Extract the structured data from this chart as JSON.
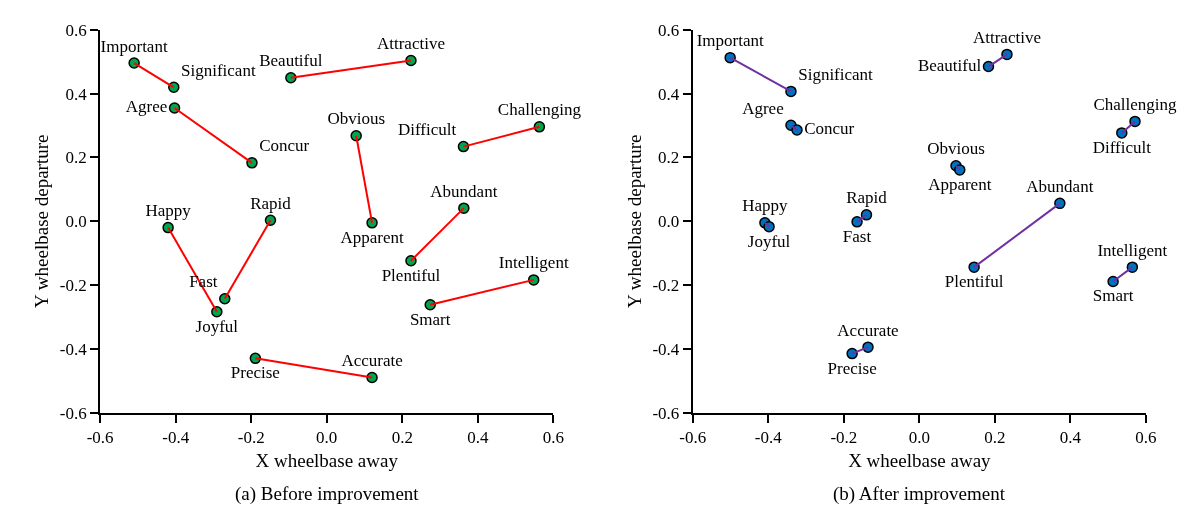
{
  "chart_data": [
    {
      "type": "scatter",
      "title": "(a) Before improvement",
      "xlabel": "X wheelbase away",
      "ylabel": "Y wheelbase departure",
      "xlim": [
        -0.6,
        0.6
      ],
      "ylim": [
        -0.6,
        0.6
      ],
      "xticks": [
        -0.6,
        -0.4,
        -0.2,
        {
          "value": 0,
          "label": "0.0"
        },
        0.2,
        0.4,
        0.6
      ],
      "yticks": [
        -0.6,
        -0.4,
        -0.2,
        {
          "value": 0,
          "label": "0.0"
        },
        0.2,
        0.4,
        0.6
      ],
      "marker": "circle",
      "line_style": "solid",
      "series": [
        {
          "type": "line",
          "color": "#ff0000",
          "colors": [
            "#00a550",
            "#00a550"
          ],
          "x": [
            -0.51,
            -0.405
          ],
          "values": [
            0.496,
            0.42
          ],
          "value_labels": [
            "Important",
            "Significant"
          ]
        },
        {
          "type": "line",
          "color": "#ff0000",
          "colors": [
            "#00a550",
            "#00a550"
          ],
          "x": [
            -0.095,
            0.223
          ],
          "values": [
            0.45,
            0.504
          ],
          "value_labels": [
            "Beautiful",
            "Attractive"
          ]
        },
        {
          "type": "line",
          "color": "#ff0000",
          "colors": [
            "#00a550",
            "#00a550"
          ],
          "x": [
            -0.403,
            -0.198
          ],
          "values": [
            0.355,
            0.183
          ],
          "value_labels": [
            "Agree",
            "Concur"
          ]
        },
        {
          "type": "line",
          "color": "#ff0000",
          "colors": [
            "#00a550",
            "#00a550"
          ],
          "x": [
            0.078,
            0.12
          ],
          "values": [
            0.268,
            -0.005
          ],
          "value_labels": [
            "Obvious",
            "Apparent"
          ]
        },
        {
          "type": "line",
          "color": "#ff0000",
          "colors": [
            "#00a550",
            "#00a550"
          ],
          "x": [
            0.362,
            0.563
          ],
          "values": [
            0.234,
            0.296
          ],
          "value_labels": [
            "Difficult",
            "Challenging"
          ]
        },
        {
          "type": "line",
          "color": "#ff0000",
          "colors": [
            "#00a550",
            "#00a550"
          ],
          "x": [
            -0.42,
            -0.291
          ],
          "values": [
            -0.02,
            -0.284
          ],
          "value_labels": [
            "Happy",
            "Joyful"
          ]
        },
        {
          "type": "line",
          "color": "#ff0000",
          "colors": [
            "#00a550",
            "#00a550"
          ],
          "x": [
            -0.149,
            -0.27
          ],
          "values": [
            0.003,
            -0.243
          ],
          "value_labels": [
            "Rapid",
            "Fast"
          ]
        },
        {
          "type": "line",
          "color": "#ff0000",
          "colors": [
            "#00a550",
            "#00a550"
          ],
          "x": [
            0.363,
            0.223
          ],
          "values": [
            0.041,
            -0.124
          ],
          "value_labels": [
            "Abundant",
            "Plentiful"
          ]
        },
        {
          "type": "line",
          "color": "#ff0000",
          "colors": [
            "#00a550",
            "#00a550"
          ],
          "x": [
            0.548,
            0.274
          ],
          "values": [
            -0.184,
            -0.262
          ],
          "value_labels": [
            "Intelligent",
            "Smart"
          ]
        },
        {
          "type": "line",
          "color": "#ff0000",
          "colors": [
            "#00a550",
            "#00a550"
          ],
          "x": [
            -0.189,
            0.12
          ],
          "values": [
            -0.43,
            -0.49
          ],
          "value_labels": [
            "Precise",
            "Accurate"
          ]
        }
      ]
    },
    {
      "type": "scatter",
      "title": "(b) After improvement",
      "xlabel": "X wheelbase away",
      "ylabel": "Y wheelbase departure",
      "xlim": [
        -0.6,
        0.6
      ],
      "ylim": [
        -0.6,
        0.6
      ],
      "xticks": [
        -0.6,
        -0.4,
        -0.2,
        {
          "value": 0,
          "label": "0.0"
        },
        0.2,
        0.4,
        0.6
      ],
      "yticks": [
        -0.6,
        -0.4,
        -0.2,
        {
          "value": 0,
          "label": "0.0"
        },
        0.2,
        0.4,
        0.6
      ],
      "marker": "circle",
      "line_style": "solid",
      "series": [
        {
          "type": "line",
          "color": "#7030a0",
          "colors": [
            "#0070c0",
            "#0070c0"
          ],
          "x": [
            -0.501,
            -0.34
          ],
          "values": [
            0.513,
            0.407
          ],
          "value_labels": [
            "Important",
            "Significant"
          ]
        },
        {
          "type": "line",
          "color": "#7030a0",
          "colors": [
            "#0070c0",
            "#0070c0"
          ],
          "x": [
            0.183,
            0.232
          ],
          "values": [
            0.485,
            0.523
          ],
          "value_labels": [
            "Beautiful",
            "Attractive"
          ]
        },
        {
          "type": "line",
          "color": "#7030a0",
          "colors": [
            "#0070c0",
            "#0070c0"
          ],
          "x": [
            -0.34,
            -0.324
          ],
          "values": [
            0.301,
            0.286
          ],
          "value_labels": [
            "Agree",
            "Concur"
          ]
        },
        {
          "type": "line",
          "color": "#7030a0",
          "colors": [
            "#0070c0",
            "#0070c0"
          ],
          "x": [
            0.097,
            0.107
          ],
          "values": [
            0.174,
            0.161
          ],
          "value_labels": [
            "Obvious",
            "Apparent"
          ]
        },
        {
          "type": "line",
          "color": "#7030a0",
          "colors": [
            "#0070c0",
            "#0070c0"
          ],
          "x": [
            0.536,
            0.571
          ],
          "values": [
            0.277,
            0.313
          ],
          "value_labels": [
            "Difficult",
            "Challenging"
          ]
        },
        {
          "type": "line",
          "color": "#7030a0",
          "colors": [
            "#0070c0",
            "#0070c0"
          ],
          "x": [
            -0.409,
            -0.398
          ],
          "values": [
            -0.005,
            -0.017
          ],
          "value_labels": [
            "Happy",
            "Joyful"
          ]
        },
        {
          "type": "line",
          "color": "#7030a0",
          "colors": [
            "#0070c0",
            "#0070c0"
          ],
          "x": [
            -0.14,
            -0.165
          ],
          "values": [
            0.02,
            -0.002
          ],
          "value_labels": [
            "Rapid",
            "Fast"
          ]
        },
        {
          "type": "line",
          "color": "#7030a0",
          "colors": [
            "#0070c0",
            "#0070c0"
          ],
          "x": [
            0.372,
            0.145
          ],
          "values": [
            0.056,
            -0.144
          ],
          "value_labels": [
            "Abundant",
            "Plentiful"
          ]
        },
        {
          "type": "line",
          "color": "#7030a0",
          "colors": [
            "#0070c0",
            "#0070c0"
          ],
          "x": [
            0.564,
            0.513
          ],
          "values": [
            -0.144,
            -0.189
          ],
          "value_labels": [
            "Intelligent",
            "Smart"
          ]
        },
        {
          "type": "line",
          "color": "#7030a0",
          "colors": [
            "#0070c0",
            "#0070c0"
          ],
          "x": [
            -0.178,
            -0.136
          ],
          "values": [
            -0.415,
            -0.395
          ],
          "value_labels": [
            "Precise",
            "Accurate"
          ]
        }
      ]
    }
  ]
}
